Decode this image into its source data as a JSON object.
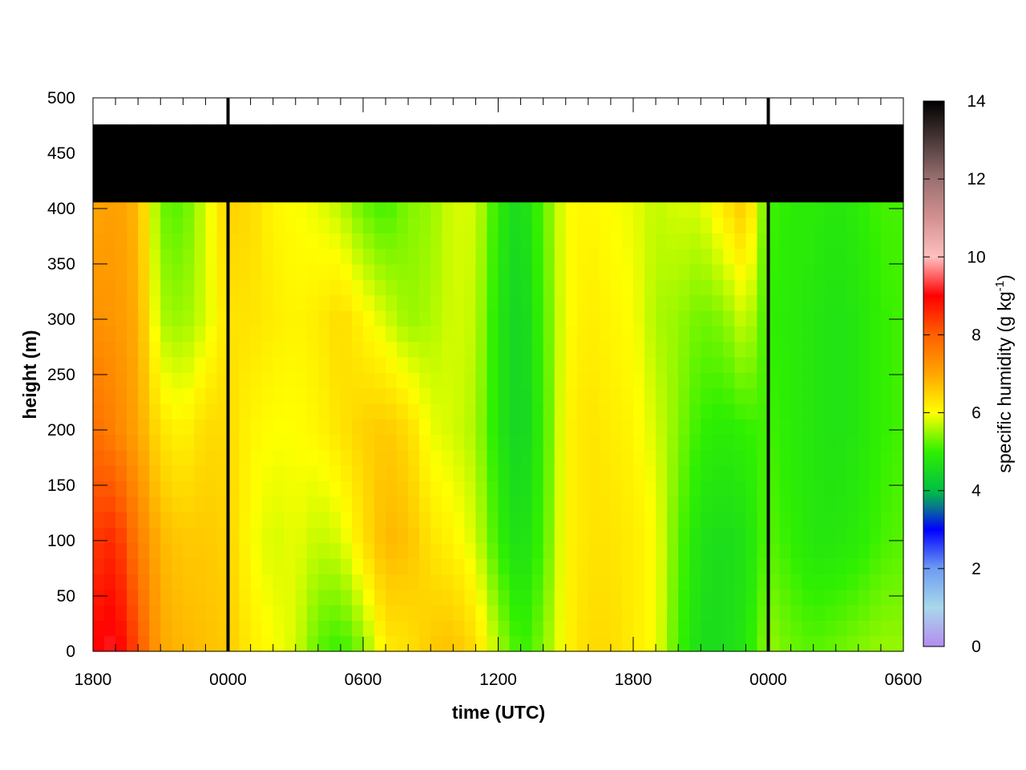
{
  "chart_data": {
    "type": "heatmap",
    "xlabel": "time (UTC)",
    "ylabel": "height (m)",
    "x_tick_labels": [
      "1800",
      "0000",
      "0600",
      "1200",
      "1800",
      "0000",
      "0600"
    ],
    "x_range_hours": [
      0,
      36
    ],
    "y_ticks": [
      0,
      50,
      100,
      150,
      200,
      250,
      300,
      350,
      400,
      450,
      500
    ],
    "ylim": [
      0,
      500
    ],
    "data_top_height_m": 476,
    "day_boundary_markers_hours": [
      6,
      30
    ],
    "colorbar": {
      "label_main": "specific humidity (g kg",
      "label_sup": "-1",
      "label_end": ")",
      "range": [
        0,
        14
      ],
      "ticks": [
        0,
        2,
        4,
        6,
        8,
        10,
        12,
        14
      ],
      "colors": [
        {
          "v": 0,
          "c": "#b48cf0"
        },
        {
          "v": 1,
          "c": "#a8d8ea"
        },
        {
          "v": 2,
          "c": "#6e9cf2"
        },
        {
          "v": 3,
          "c": "#0000ff"
        },
        {
          "v": 3.6,
          "c": "#0a7a8a"
        },
        {
          "v": 4,
          "c": "#00bf45"
        },
        {
          "v": 5,
          "c": "#2ff000"
        },
        {
          "v": 6,
          "c": "#ffff00"
        },
        {
          "v": 7,
          "c": "#ffa500"
        },
        {
          "v": 8,
          "c": "#ff6000"
        },
        {
          "v": 9,
          "c": "#ff0000"
        },
        {
          "v": 10,
          "c": "#ffc0c0"
        },
        {
          "v": 11,
          "c": "#d49090"
        },
        {
          "v": 12,
          "c": "#9a7070"
        },
        {
          "v": 13,
          "c": "#4a3838"
        },
        {
          "v": 14,
          "c": "#000000"
        }
      ]
    },
    "time_hours": [
      0,
      1,
      2,
      3,
      4,
      5,
      6,
      7,
      8,
      9,
      10,
      11,
      12,
      13,
      14,
      15,
      16,
      17,
      18,
      19,
      20,
      21,
      22,
      23,
      24,
      25,
      26,
      27,
      28,
      29,
      30,
      31,
      32,
      33,
      34,
      35,
      36
    ],
    "height_levels_m": [
      0,
      100,
      200,
      300,
      400,
      476
    ],
    "humidity_g_per_kg": [
      [
        9.0,
        8.4,
        7.8,
        7.3,
        7.0
      ],
      [
        9.2,
        8.6,
        7.5,
        7.2,
        7.1
      ],
      [
        8.2,
        7.6,
        7.0,
        6.9,
        6.8
      ],
      [
        7.0,
        6.8,
        6.3,
        5.6,
        5.3
      ],
      [
        6.8,
        6.6,
        6.1,
        5.5,
        5.2
      ],
      [
        6.7,
        6.6,
        6.4,
        5.8,
        5.8
      ],
      [
        6.6,
        6.5,
        6.4,
        6.3,
        6.5
      ],
      [
        6.2,
        6.0,
        6.1,
        6.3,
        6.4
      ],
      [
        6.0,
        5.8,
        6.0,
        6.2,
        6.1
      ],
      [
        5.8,
        5.9,
        6.0,
        6.1,
        6.0
      ],
      [
        5.2,
        5.7,
        6.1,
        6.2,
        5.9
      ],
      [
        5.0,
        5.8,
        6.3,
        6.4,
        5.7
      ],
      [
        5.4,
        6.3,
        6.5,
        6.1,
        5.3
      ],
      [
        6.2,
        6.8,
        6.6,
        5.8,
        5.1
      ],
      [
        6.3,
        6.7,
        6.4,
        5.5,
        5.4
      ],
      [
        6.6,
        6.3,
        5.9,
        5.6,
        5.5
      ],
      [
        6.7,
        6.1,
        5.8,
        5.8,
        5.8
      ],
      [
        6.4,
        5.8,
        5.6,
        5.7,
        5.8
      ],
      [
        5.6,
        5.0,
        4.8,
        4.8,
        4.9
      ],
      [
        5.0,
        4.6,
        4.4,
        4.4,
        4.5
      ],
      [
        5.4,
        5.1,
        5.0,
        5.1,
        5.2
      ],
      [
        6.1,
        6.1,
        6.1,
        6.0,
        6.0
      ],
      [
        6.4,
        6.3,
        6.3,
        6.2,
        6.1
      ],
      [
        6.4,
        6.3,
        6.2,
        6.1,
        6.0
      ],
      [
        6.2,
        6.2,
        6.1,
        6.0,
        5.9
      ],
      [
        6.0,
        6.0,
        5.8,
        5.6,
        5.7
      ],
      [
        5.1,
        5.2,
        5.4,
        5.5,
        5.8
      ],
      [
        4.6,
        4.7,
        5.0,
        5.3,
        5.8
      ],
      [
        4.6,
        4.6,
        4.9,
        5.4,
        6.2
      ],
      [
        4.8,
        4.7,
        5.0,
        5.8,
        6.6
      ],
      [
        5.5,
        5.2,
        5.1,
        5.0,
        5.1
      ],
      [
        5.3,
        5.0,
        4.9,
        4.9,
        4.9
      ],
      [
        5.2,
        4.8,
        4.8,
        4.8,
        4.9
      ],
      [
        5.3,
        4.8,
        4.7,
        4.7,
        4.8
      ],
      [
        5.4,
        4.9,
        4.8,
        4.8,
        4.9
      ],
      [
        5.5,
        5.1,
        5.0,
        5.0,
        5.1
      ],
      [
        5.5,
        5.2,
        5.1,
        5.1,
        5.1
      ]
    ]
  }
}
